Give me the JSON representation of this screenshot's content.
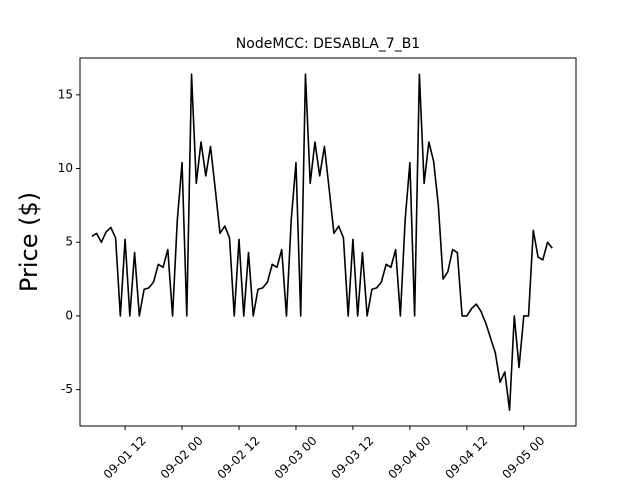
{
  "chart_data": {
    "type": "line",
    "title": "NodeMCC: DESABLA_7_B1",
    "y_label": "Price ($)",
    "x": [
      5,
      6,
      7,
      8,
      9,
      10,
      11,
      12,
      13,
      14,
      15,
      16,
      17,
      18,
      19,
      20,
      21,
      22,
      23,
      24,
      25,
      26,
      27,
      28,
      29,
      30,
      31,
      32,
      33,
      34,
      35,
      36,
      37,
      38,
      39,
      40,
      41,
      42,
      43,
      44,
      45,
      46,
      47,
      48,
      49,
      50,
      51,
      52,
      53,
      54,
      55,
      56,
      57,
      58,
      59,
      60,
      61,
      62,
      63,
      64,
      65,
      66,
      67,
      68,
      69,
      70,
      71,
      72,
      73,
      74,
      75,
      76,
      77,
      78,
      79,
      80,
      81,
      82,
      83,
      84,
      85,
      86,
      87,
      88,
      89,
      90,
      91,
      92,
      93,
      94,
      95,
      96,
      97,
      98,
      99,
      100,
      101,
      102
    ],
    "series": [
      {
        "color": "#000000",
        "values": [
          5.4,
          5.6,
          5.0,
          5.7,
          6.0,
          5.3,
          0,
          5.2,
          0,
          4.3,
          0,
          1.8,
          1.9,
          2.3,
          3.5,
          3.3,
          4.5,
          0,
          6.5,
          10.4,
          0,
          16.4,
          9.0,
          11.8,
          9.5,
          11.5,
          8.6,
          5.6,
          6.1,
          5.3,
          0,
          5.2,
          0,
          4.3,
          0,
          1.8,
          1.9,
          2.3,
          3.5,
          3.3,
          4.5,
          0,
          6.5,
          10.4,
          0,
          16.4,
          9.0,
          11.8,
          9.5,
          11.5,
          8.6,
          5.6,
          6.1,
          5.3,
          0,
          5.2,
          0,
          4.3,
          0,
          1.8,
          1.9,
          2.3,
          3.5,
          3.3,
          4.5,
          0,
          6.5,
          10.4,
          0,
          16.4,
          9.0,
          11.8,
          10.5,
          7.5,
          2.5,
          3.0,
          4.5,
          4.3,
          0,
          0,
          0.5,
          0.8,
          0.3,
          -0.5,
          -1.5,
          -2.5,
          -4.5,
          -3.8,
          -6.4,
          0,
          -3.5,
          0,
          0,
          5.8,
          4.0,
          3.8,
          5.0,
          4.6
        ]
      }
    ],
    "xlim": [
      2.5,
      107
    ],
    "ylim": [
      -7.47,
      17.5
    ],
    "xticks": [
      {
        "value": 12,
        "label": "09-01 12"
      },
      {
        "value": 24,
        "label": "09-02 00"
      },
      {
        "value": 36,
        "label": "09-02 12"
      },
      {
        "value": 48,
        "label": "09-03 00"
      },
      {
        "value": 60,
        "label": "09-03 12"
      },
      {
        "value": 72,
        "label": "09-04 00"
      },
      {
        "value": 84,
        "label": "09-04 12"
      },
      {
        "value": 96,
        "label": "09-05 00"
      }
    ],
    "yticks": [
      -5,
      0,
      5,
      10,
      15
    ]
  }
}
